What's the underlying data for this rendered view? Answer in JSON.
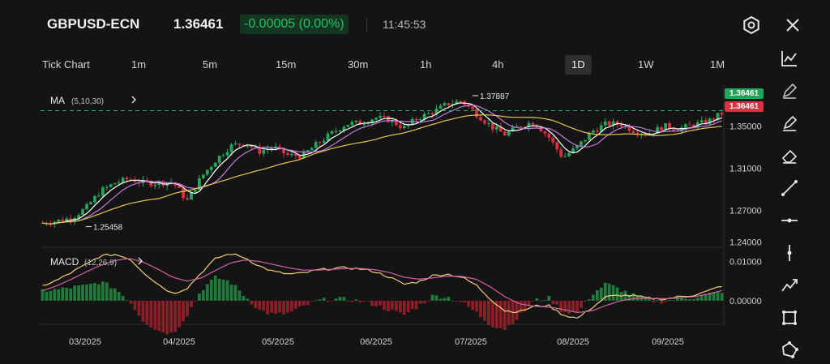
{
  "header": {
    "symbol": "GBPUSD-ECN",
    "price": "1.36461",
    "change": "-0.00005 (0.00%)",
    "time": "11:45:53"
  },
  "tabs": [
    {
      "label": "Tick Chart",
      "active": false
    },
    {
      "label": "1m",
      "active": false
    },
    {
      "label": "5m",
      "active": false
    },
    {
      "label": "15m",
      "active": false
    },
    {
      "label": "30m",
      "active": false
    },
    {
      "label": "1h",
      "active": false
    },
    {
      "label": "4h",
      "active": false
    },
    {
      "label": "1D",
      "active": true
    },
    {
      "label": "1W",
      "active": false
    },
    {
      "label": "1M",
      "active": false
    }
  ],
  "toolbar": [
    "line-chart-icon",
    "pencil-icon",
    "brush-icon",
    "eraser-icon",
    "trend-line-icon",
    "horizontal-line-icon",
    "vertical-line-icon",
    "polyline-icon",
    "rectangle-icon",
    "polygon-icon"
  ],
  "header_icons": [
    "settings-icon",
    "close-icon"
  ],
  "price_tags": {
    "bid": "1.36461",
    "ask": "1.36461"
  },
  "chart_data": [
    {
      "type": "candlestick",
      "indicator_label": "MA",
      "indicator_params": "(5,10,30)",
      "y_ticks": [
        "1.35000",
        "1.31000",
        "1.27000",
        "1.24000"
      ],
      "y_tick_values": [
        1.35,
        1.31,
        1.27,
        1.24
      ],
      "ylim": [
        1.235,
        1.385
      ],
      "x_ticks": [
        "03/2025",
        "04/2025",
        "05/2025",
        "06/2025",
        "07/2025",
        "08/2025",
        "09/2025"
      ],
      "annotations": [
        {
          "text": "1.37887",
          "kind": "high",
          "value": 1.37887
        },
        {
          "text": "1.25458",
          "kind": "low",
          "value": 1.25458
        }
      ],
      "current_price": 1.36461,
      "close_keypoints": [
        1.258,
        1.26,
        1.263,
        1.272,
        1.288,
        1.296,
        1.3,
        1.296,
        1.296,
        1.297,
        1.279,
        1.302,
        1.318,
        1.331,
        1.334,
        1.326,
        1.33,
        1.322,
        1.322,
        1.333,
        1.343,
        1.352,
        1.353,
        1.358,
        1.356,
        1.348,
        1.358,
        1.363,
        1.371,
        1.374,
        1.362,
        1.35,
        1.342,
        1.35,
        1.354,
        1.34,
        1.32,
        1.33,
        1.345,
        1.352,
        1.352,
        1.345,
        1.343,
        1.35,
        1.347,
        1.351,
        1.354,
        1.362
      ],
      "series": [
        {
          "name": "MA5",
          "color": "#ffffff"
        },
        {
          "name": "MA10",
          "color": "#c478e0"
        },
        {
          "name": "MA30",
          "color": "#e6c84a"
        }
      ],
      "up_color": "#26a65b",
      "down_color": "#d83340"
    },
    {
      "type": "macd",
      "indicator_label": "MACD",
      "indicator_params": "(12,26,9)",
      "y_ticks": [
        "0.01000",
        "0.00000"
      ],
      "y_tick_values": [
        0.01,
        0.0
      ],
      "ylim": [
        -0.006,
        0.013
      ],
      "dif_keypoints": [
        0.0038,
        0.0052,
        0.0072,
        0.0092,
        0.0114,
        0.0118,
        0.0108,
        0.0072,
        0.0042,
        0.0018,
        0.0032,
        0.0072,
        0.0108,
        0.012,
        0.011,
        0.0088,
        0.0074,
        0.0068,
        0.007,
        0.0078,
        0.0082,
        0.0084,
        0.0081,
        0.0074,
        0.006,
        0.0042,
        0.0048,
        0.0064,
        0.0068,
        0.006,
        0.004,
        0.0004,
        -0.0026,
        -0.0028,
        -0.0014,
        -0.0012,
        -0.0036,
        -0.0045,
        -0.0018,
        0.001,
        0.0014,
        0.0012,
        0.0006,
        0.0004,
        0.001,
        0.0014,
        0.0024,
        0.0038
      ],
      "dea_keypoints": [
        0.0025,
        0.0038,
        0.0055,
        0.0073,
        0.009,
        0.0102,
        0.0108,
        0.0098,
        0.008,
        0.006,
        0.005,
        0.0058,
        0.0078,
        0.0096,
        0.0104,
        0.01,
        0.0092,
        0.0084,
        0.0078,
        0.0078,
        0.008,
        0.0082,
        0.0082,
        0.0079,
        0.0072,
        0.006,
        0.0055,
        0.0058,
        0.0063,
        0.0062,
        0.0055,
        0.0035,
        0.001,
        -0.0008,
        -0.0014,
        -0.0016,
        -0.0022,
        -0.003,
        -0.0026,
        -0.0012,
        0.0,
        0.0006,
        0.0006,
        0.0005,
        0.0007,
        0.001,
        0.0016,
        0.0026
      ],
      "series": [
        {
          "name": "DIF",
          "color": "#f0d070"
        },
        {
          "name": "DEA",
          "color": "#d35fa8"
        }
      ],
      "hist_up_color": "#1f7a3c",
      "hist_down_color": "#8a1f28"
    }
  ]
}
